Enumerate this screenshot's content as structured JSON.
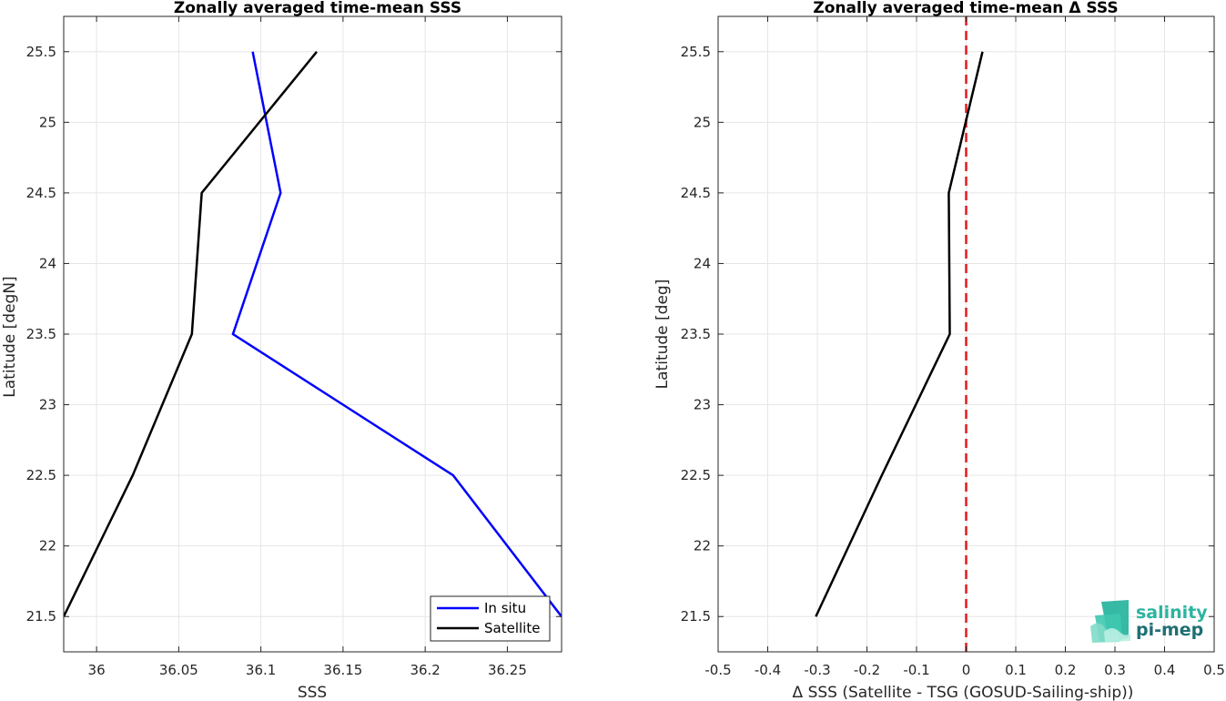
{
  "chart_data": [
    {
      "type": "line",
      "title": "Zonally averaged time-mean SSS",
      "xlabel": "SSS",
      "ylabel": "Latitude [degN]",
      "xlim": [
        35.98,
        36.283
      ],
      "ylim": [
        21.25,
        25.75
      ],
      "xticks": [
        "36",
        "36.05",
        "36.1",
        "36.15",
        "36.2",
        "36.25"
      ],
      "yticks": [
        "21.5",
        "22",
        "22.5",
        "23",
        "23.5",
        "24",
        "24.5",
        "25",
        "25.5"
      ],
      "grid": true,
      "legend_position": "bottom-right",
      "series": [
        {
          "name": "In situ",
          "color": "#0000ff",
          "x": [
            36.283,
            36.217,
            36.083,
            36.112,
            36.095
          ],
          "y": [
            21.5,
            22.5,
            23.5,
            24.5,
            25.5
          ]
        },
        {
          "name": "Satellite",
          "color": "#000000",
          "x": [
            35.98,
            36.022,
            36.058,
            36.064,
            36.134
          ],
          "y": [
            21.5,
            22.5,
            23.5,
            24.5,
            25.5
          ]
        }
      ]
    },
    {
      "type": "line",
      "title": "Zonally averaged time-mean Δ SSS",
      "xlabel": "Δ SSS (Satellite - TSG (GOSUD-Sailing-ship))",
      "ylabel": "Latitude [deg]",
      "xlim": [
        -0.5,
        0.5
      ],
      "ylim": [
        21.25,
        25.75
      ],
      "xticks": [
        "-0.5",
        "-0.4",
        "-0.3",
        "-0.2",
        "-0.1",
        "0",
        "0.1",
        "0.2",
        "0.3",
        "0.4",
        "0.5"
      ],
      "yticks": [
        "21.5",
        "22",
        "22.5",
        "23",
        "23.5",
        "24",
        "24.5",
        "25",
        "25.5"
      ],
      "grid": true,
      "reference_line": {
        "x": 0,
        "color": "#e41a1c",
        "style": "dashed"
      },
      "series": [
        {
          "color": "#000000",
          "x": [
            -0.303,
            -0.17,
            -0.033,
            -0.035,
            0.033
          ],
          "y": [
            21.5,
            22.5,
            23.5,
            24.5,
            25.5
          ]
        }
      ]
    }
  ],
  "logo": {
    "line1": "salinity",
    "line2": "pi-mep"
  }
}
